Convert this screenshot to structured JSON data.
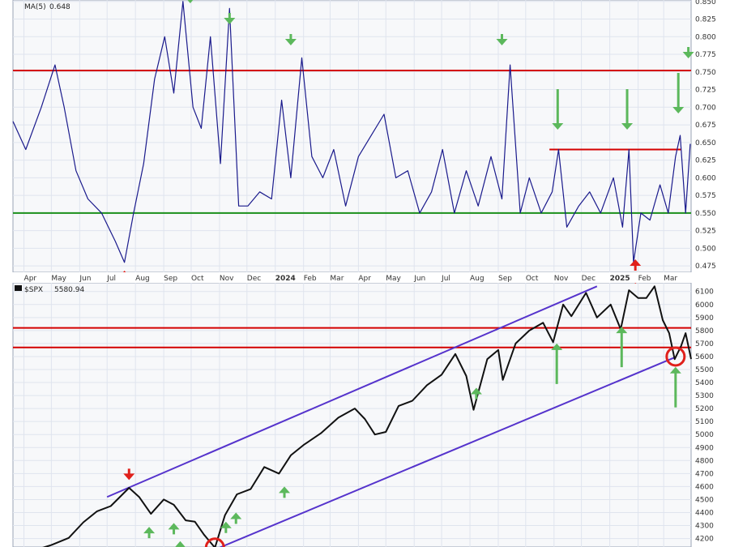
{
  "colors": {
    "background": "#ffffff",
    "panel_bg": "#f7f8fa",
    "grid": "#dfe4ee",
    "ma_line": "#1a1a8c",
    "price_line": "#111111",
    "resistance": "#d40000",
    "support": "#1a8f1a",
    "channel": "#5533cc",
    "arrow_green": "#5cb85c",
    "arrow_red": "#e0201b",
    "circle": "#e0201b"
  },
  "chart_data": [
    {
      "type": "line",
      "panel": "upper",
      "legend": {
        "name": "MA(5)",
        "value": "0.648"
      },
      "x_tick_labels": [
        "Apr",
        "May",
        "Jun",
        "Jul",
        "Aug",
        "Sep",
        "Oct",
        "Nov",
        "Dec",
        "2024",
        "Feb",
        "Mar",
        "Apr",
        "May",
        "Jun",
        "Jul",
        "Aug",
        "Sep",
        "Oct",
        "Nov",
        "Dec",
        "2025",
        "Feb",
        "Mar"
      ],
      "y_tick_labels": [
        "0.850",
        "0.825",
        "0.800",
        "0.775",
        "0.750",
        "0.725",
        "0.700",
        "0.675",
        "0.650",
        "0.625",
        "0.600",
        "0.575",
        "0.550",
        "0.525",
        "0.500",
        "0.475"
      ],
      "ylim": [
        0.466,
        0.852
      ],
      "series": [
        {
          "name": "MA(5)",
          "x": [
            "2023-03-20",
            "2023-04-03",
            "2023-04-20",
            "2023-05-05",
            "2023-05-15",
            "2023-05-28",
            "2023-06-10",
            "2023-06-25",
            "2023-07-10",
            "2023-07-20",
            "2023-07-30",
            "2023-08-10",
            "2023-08-22",
            "2023-09-02",
            "2023-09-12",
            "2023-09-22",
            "2023-10-03",
            "2023-10-12",
            "2023-10-22",
            "2023-11-02",
            "2023-11-12",
            "2023-11-22",
            "2023-12-02",
            "2023-12-15",
            "2023-12-28",
            "2024-01-08",
            "2024-01-18",
            "2024-01-30",
            "2024-02-10",
            "2024-02-22",
            "2024-03-05",
            "2024-03-18",
            "2024-04-01",
            "2024-04-15",
            "2024-04-29",
            "2024-05-12",
            "2024-05-25",
            "2024-06-07",
            "2024-06-20",
            "2024-07-02",
            "2024-07-15",
            "2024-07-28",
            "2024-08-10",
            "2024-08-24",
            "2024-09-05",
            "2024-09-14",
            "2024-09-25",
            "2024-10-05",
            "2024-10-18",
            "2024-10-30",
            "2024-11-06",
            "2024-11-15",
            "2024-11-28",
            "2024-12-10",
            "2024-12-22",
            "2025-01-05",
            "2025-01-15",
            "2025-01-22",
            "2025-01-27",
            "2025-02-04",
            "2025-02-14",
            "2025-02-25",
            "2025-03-06",
            "2025-03-14",
            "2025-03-19",
            "2025-03-25",
            "2025-03-30"
          ],
          "y": [
            0.68,
            0.64,
            0.7,
            0.76,
            0.7,
            0.61,
            0.57,
            0.55,
            0.51,
            0.48,
            0.55,
            0.62,
            0.74,
            0.8,
            0.72,
            0.85,
            0.7,
            0.67,
            0.8,
            0.62,
            0.84,
            0.56,
            0.56,
            0.58,
            0.57,
            0.71,
            0.6,
            0.77,
            0.63,
            0.6,
            0.64,
            0.56,
            0.63,
            0.66,
            0.69,
            0.6,
            0.61,
            0.55,
            0.58,
            0.64,
            0.55,
            0.61,
            0.56,
            0.63,
            0.57,
            0.76,
            0.55,
            0.6,
            0.55,
            0.58,
            0.64,
            0.53,
            0.56,
            0.58,
            0.55,
            0.6,
            0.53,
            0.64,
            0.48,
            0.55,
            0.54,
            0.59,
            0.55,
            0.63,
            0.66,
            0.55,
            0.648
          ]
        }
      ],
      "reference_lines": [
        {
          "value": 0.752,
          "color": "red"
        },
        {
          "value": 0.55,
          "color": "green"
        },
        {
          "value": 0.64,
          "color": "red",
          "start": "2024-10-27"
        }
      ],
      "markers": [
        {
          "x": "2023-07-20",
          "dir": "up",
          "color": "red"
        },
        {
          "x": "2023-09-30",
          "dir": "down",
          "color": "green"
        },
        {
          "x": "2023-11-12",
          "dir": "down",
          "color": "green"
        },
        {
          "x": "2024-01-18",
          "dir": "down",
          "color": "green"
        },
        {
          "x": "2024-09-05",
          "dir": "down",
          "color": "green"
        },
        {
          "x": "2024-11-05",
          "dir": "down",
          "color": "green",
          "long": true
        },
        {
          "x": "2025-01-20",
          "dir": "down",
          "color": "green",
          "long": true
        },
        {
          "x": "2025-03-17",
          "dir": "down",
          "color": "green",
          "long": true
        },
        {
          "x": "2025-03-28",
          "dir": "down",
          "color": "green"
        },
        {
          "x": "2025-01-29",
          "dir": "up",
          "color": "red"
        }
      ]
    },
    {
      "type": "line",
      "panel": "lower",
      "legend": {
        "name": "$SPX",
        "value": "5580.94"
      },
      "y_tick_labels": [
        "6100",
        "6000",
        "5900",
        "5800",
        "5700",
        "5600",
        "5500",
        "5400",
        "5300",
        "5200",
        "5100",
        "5000",
        "4900",
        "4800",
        "4700",
        "4600",
        "4500",
        "4400",
        "4300",
        "4200"
      ],
      "ylim": [
        4135,
        6167
      ],
      "series": [
        {
          "name": "$SPX",
          "x": [
            "2023-03-20",
            "2023-04-10",
            "2023-05-01",
            "2023-05-20",
            "2023-06-05",
            "2023-06-20",
            "2023-07-05",
            "2023-07-25",
            "2023-08-05",
            "2023-08-18",
            "2023-09-01",
            "2023-09-12",
            "2023-09-25",
            "2023-10-05",
            "2023-10-15",
            "2023-10-27",
            "2023-11-07",
            "2023-11-20",
            "2023-12-05",
            "2023-12-20",
            "2024-01-05",
            "2024-01-18",
            "2024-02-01",
            "2024-02-20",
            "2024-03-10",
            "2024-03-28",
            "2024-04-08",
            "2024-04-19",
            "2024-05-01",
            "2024-05-15",
            "2024-05-30",
            "2024-06-15",
            "2024-07-01",
            "2024-07-16",
            "2024-07-28",
            "2024-08-05",
            "2024-08-20",
            "2024-09-01",
            "2024-09-06",
            "2024-09-20",
            "2024-10-05",
            "2024-10-20",
            "2024-10-31",
            "2024-11-11",
            "2024-11-20",
            "2024-12-06",
            "2024-12-18",
            "2025-01-02",
            "2025-01-13",
            "2025-01-22",
            "2025-02-01",
            "2025-02-10",
            "2025-02-19",
            "2025-02-28",
            "2025-03-07",
            "2025-03-13",
            "2025-03-20",
            "2025-03-25",
            "2025-03-31"
          ],
          "y": [
            3960,
            4105,
            4150,
            4205,
            4325,
            4410,
            4450,
            4590,
            4520,
            4390,
            4500,
            4460,
            4340,
            4330,
            4230,
            4130,
            4380,
            4540,
            4580,
            4750,
            4700,
            4840,
            4920,
            5010,
            5130,
            5200,
            5120,
            5000,
            5020,
            5220,
            5260,
            5380,
            5460,
            5620,
            5450,
            5190,
            5580,
            5650,
            5420,
            5700,
            5800,
            5860,
            5710,
            6000,
            5910,
            6090,
            5900,
            6000,
            5810,
            6110,
            6050,
            6050,
            6140,
            5880,
            5780,
            5580,
            5680,
            5780,
            5580.94
          ]
        }
      ],
      "reference_lines": [
        {
          "value": 5820,
          "color": "red"
        },
        {
          "value": 5670,
          "color": "red"
        }
      ],
      "channel_lines": [
        {
          "from": {
            "x": "2023-07-01",
            "y": 4520
          },
          "to": {
            "x": "2024-12-18",
            "y": 6140
          }
        },
        {
          "from": {
            "x": "2023-11-01",
            "y": 4130
          },
          "to": {
            "x": "2025-03-12",
            "y": 5590
          }
        }
      ],
      "markers": [
        {
          "x": "2023-07-25",
          "dir": "down",
          "color": "red"
        },
        {
          "x": "2023-08-16",
          "dir": "up",
          "color": "green"
        },
        {
          "x": "2023-09-12",
          "dir": "up",
          "color": "green"
        },
        {
          "x": "2023-09-19",
          "dir": "up",
          "color": "green"
        },
        {
          "x": "2023-11-08",
          "dir": "up",
          "color": "green"
        },
        {
          "x": "2023-11-19",
          "dir": "up",
          "color": "green"
        },
        {
          "x": "2024-01-11",
          "dir": "up",
          "color": "green"
        },
        {
          "x": "2024-08-08",
          "dir": "up",
          "color": "green"
        },
        {
          "x": "2024-11-04",
          "dir": "up",
          "color": "green",
          "long": true
        },
        {
          "x": "2025-01-14",
          "dir": "up",
          "color": "green",
          "long": true
        },
        {
          "x": "2025-03-14",
          "dir": "up",
          "color": "green",
          "long": true
        },
        {
          "x": "2025-01-29",
          "dir": "down",
          "color": "red"
        }
      ],
      "circles": [
        {
          "x": "2023-10-27",
          "y": 4130
        },
        {
          "x": "2025-03-14",
          "y": 5600
        }
      ]
    }
  ]
}
